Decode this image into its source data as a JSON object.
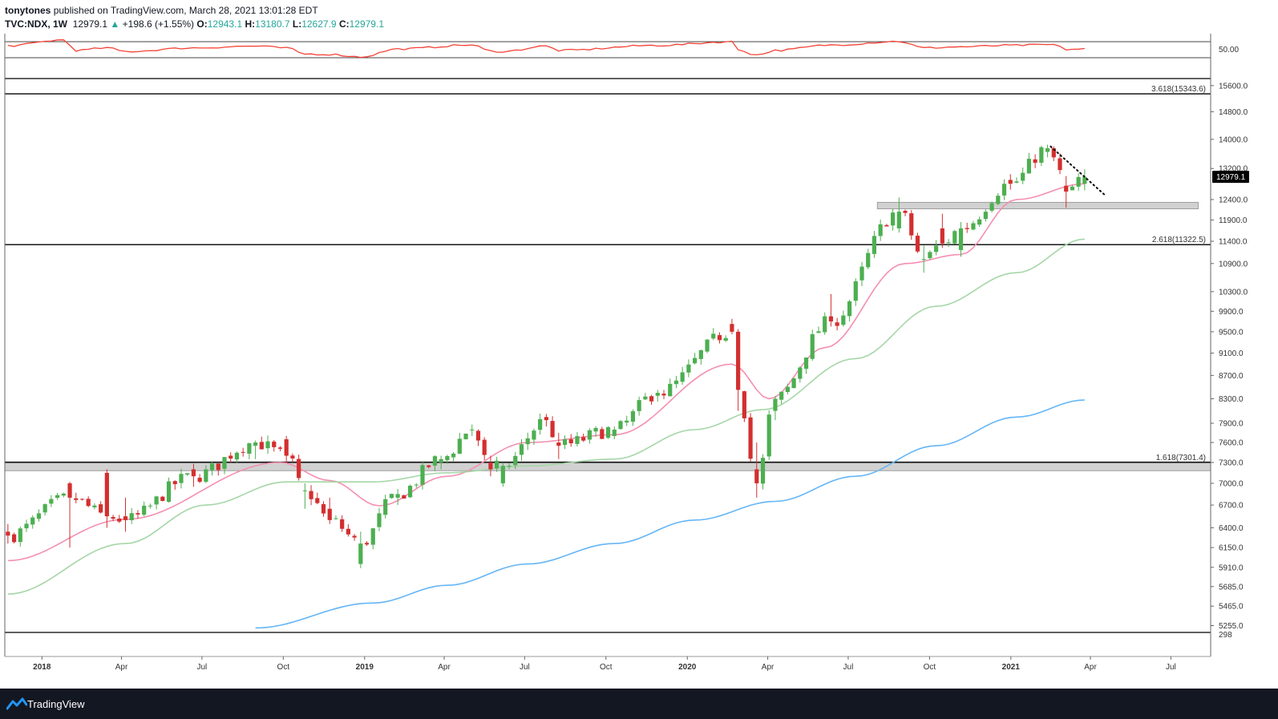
{
  "header": {
    "author": "tonytones",
    "publish_text": "published on TradingView.com, March 28, 2021 13:01:28 EDT",
    "symbol": "TVC:NDX, 1W",
    "last": "12979.1",
    "change_arrow": "▲",
    "change": "+198.6 (+1.55%)",
    "open_label": "O:",
    "open": "12943.1",
    "high_label": "H:",
    "high": "13180.7",
    "low_label": "L:",
    "low": "12627.9",
    "close_label": "C:",
    "close": "12979.1"
  },
  "footer": {
    "brand": "TradingView"
  },
  "colors": {
    "up": "#4caf50",
    "down": "#d32f2f",
    "ma_fast": "#f48fb1",
    "ma_mid": "#a5d6a7",
    "ma_slow": "#64b5f6",
    "rsi": "#f44336",
    "last_price_bg": "#000000"
  },
  "chart_data": {
    "type": "candlestick",
    "timeframe": "1W",
    "symbol": "TVC:NDX",
    "y_scale": "log",
    "ylim": [
      5200,
      15900
    ],
    "x_range": [
      "2017-11-20",
      "2021-08-15"
    ],
    "x_ticks": [
      {
        "date": "2018-01-01",
        "label": "2018",
        "bold": true
      },
      {
        "date": "2018-04-01",
        "label": "Apr"
      },
      {
        "date": "2018-07-01",
        "label": "Jul"
      },
      {
        "date": "2018-10-01",
        "label": "Oct"
      },
      {
        "date": "2019-01-01",
        "label": "2019",
        "bold": true
      },
      {
        "date": "2019-04-01",
        "label": "Apr"
      },
      {
        "date": "2019-07-01",
        "label": "Jul"
      },
      {
        "date": "2019-10-01",
        "label": "Oct"
      },
      {
        "date": "2020-01-01",
        "label": "2020",
        "bold": true
      },
      {
        "date": "2020-04-01",
        "label": "Apr"
      },
      {
        "date": "2020-07-01",
        "label": "Jul"
      },
      {
        "date": "2020-10-01",
        "label": "Oct"
      },
      {
        "date": "2021-01-01",
        "label": "2021",
        "bold": true
      },
      {
        "date": "2021-04-01",
        "label": "Apr"
      },
      {
        "date": "2021-07-01",
        "label": "Jul"
      }
    ],
    "price_ticks": [
      "15600.0",
      "14800.0",
      "14000.0",
      "13200.0",
      "12400.0",
      "11900.0",
      "11400.0",
      "10900.0",
      "10300.0",
      "9900.0",
      "9500.0",
      "9100.0",
      "8700.0",
      "8300.0",
      "7900.0",
      "7600.0",
      "7300.0",
      "7000.0",
      "6700.0",
      "6400.0",
      "6150.0",
      "5910.0",
      "5685.0",
      "5465.0",
      "5255.0"
    ],
    "rsi_tick": "50.00",
    "rsi_bottom_tick": "298",
    "last_price_label": "12979.1",
    "fib_levels": [
      {
        "label": "3.618(15343.6)",
        "value": 15343.6
      },
      {
        "label": "2.618(11322.5)",
        "value": 11322.5
      },
      {
        "label": "1.618(7301.4)",
        "value": 7301.4
      }
    ],
    "zones": [
      {
        "from": "2020-08-03",
        "to": "2021-08-01",
        "low": 12170,
        "high": 12330
      },
      {
        "from": "2017-11-20",
        "to": "2021-08-15",
        "low": 7180,
        "high": 7310
      }
    ],
    "trendline": [
      {
        "date": "2021-02-15",
        "value": 13800
      },
      {
        "date": "2021-04-19",
        "value": 12480
      }
    ],
    "ohlc_anchors": [
      [
        "2017-11-20",
        6350,
        6450,
        6200,
        6300
      ],
      [
        "2018-01-29",
        7000,
        7020,
        6150,
        6800
      ],
      [
        "2018-03-12",
        7150,
        7200,
        6400,
        6550
      ],
      [
        "2018-04-02",
        6550,
        6800,
        6350,
        6500
      ],
      [
        "2018-06-18",
        7200,
        7280,
        6950,
        7100
      ],
      [
        "2018-08-27",
        7550,
        7630,
        7350,
        7600
      ],
      [
        "2018-10-01",
        7650,
        7700,
        7300,
        7400
      ],
      [
        "2018-10-22",
        6900,
        7000,
        6650,
        6900
      ],
      [
        "2018-11-19",
        6650,
        6800,
        6450,
        6500
      ],
      [
        "2018-12-24",
        5950,
        6350,
        5900,
        6200
      ],
      [
        "2019-02-04",
        6800,
        6920,
        6700,
        6850
      ],
      [
        "2019-03-25",
        7300,
        7400,
        7200,
        7350
      ],
      [
        "2019-04-29",
        7800,
        7880,
        7700,
        7800
      ],
      [
        "2019-05-20",
        7300,
        7400,
        7100,
        7200
      ],
      [
        "2019-06-03",
        7000,
        7300,
        6950,
        7250
      ],
      [
        "2019-07-22",
        8000,
        8050,
        7850,
        7950
      ],
      [
        "2019-08-05",
        7600,
        7750,
        7350,
        7550
      ],
      [
        "2019-10-07",
        7700,
        7850,
        7650,
        7800
      ],
      [
        "2019-11-25",
        8350,
        8450,
        8250,
        8400
      ],
      [
        "2020-02-17",
        9650,
        9750,
        9450,
        9500
      ],
      [
        "2020-02-24",
        9500,
        9550,
        8100,
        8450
      ],
      [
        "2020-03-16",
        7200,
        7600,
        6800,
        7000
      ],
      [
        "2020-04-06",
        8100,
        8350,
        7950,
        8300
      ],
      [
        "2020-06-08",
        9800,
        10250,
        9600,
        9700
      ],
      [
        "2020-08-24",
        11700,
        12450,
        11600,
        12100
      ],
      [
        "2020-09-21",
        11000,
        11300,
        10700,
        11000
      ],
      [
        "2020-10-12",
        11700,
        12050,
        11250,
        11350
      ],
      [
        "2020-11-02",
        11200,
        11850,
        11050,
        11700
      ],
      [
        "2020-12-28",
        12900,
        13050,
        12650,
        12800
      ],
      [
        "2021-02-08",
        13650,
        13850,
        13500,
        13750
      ],
      [
        "2021-02-15",
        13750,
        13800,
        13400,
        13500
      ],
      [
        "2021-03-01",
        12750,
        13000,
        12200,
        12600
      ],
      [
        "2021-03-22",
        12800,
        13180,
        12630,
        12980
      ]
    ],
    "rsi_anchors": [
      [
        "2017-11-20",
        61
      ],
      [
        "2018-01-22",
        77
      ],
      [
        "2018-02-05",
        48
      ],
      [
        "2018-03-12",
        55
      ],
      [
        "2018-04-02",
        45
      ],
      [
        "2018-06-18",
        55
      ],
      [
        "2018-08-27",
        60
      ],
      [
        "2018-10-01",
        55
      ],
      [
        "2018-10-22",
        38
      ],
      [
        "2018-11-19",
        37
      ],
      [
        "2018-12-24",
        30
      ],
      [
        "2019-02-04",
        52
      ],
      [
        "2019-04-29",
        63
      ],
      [
        "2019-05-20",
        46
      ],
      [
        "2019-06-03",
        45
      ],
      [
        "2019-07-22",
        60
      ],
      [
        "2019-08-05",
        48
      ],
      [
        "2019-11-25",
        62
      ],
      [
        "2020-02-17",
        72
      ],
      [
        "2020-02-24",
        50
      ],
      [
        "2020-03-16",
        35
      ],
      [
        "2020-04-06",
        48
      ],
      [
        "2020-06-08",
        63
      ],
      [
        "2020-08-24",
        73
      ],
      [
        "2020-09-21",
        55
      ],
      [
        "2020-11-02",
        58
      ],
      [
        "2020-12-28",
        62
      ],
      [
        "2021-02-15",
        64
      ],
      [
        "2021-03-01",
        51
      ],
      [
        "2021-03-22",
        52
      ]
    ],
    "ma_fast_anchors": [
      [
        "2017-11-20",
        5990
      ],
      [
        "2018-04-02",
        6510
      ],
      [
        "2018-09-24",
        7300
      ],
      [
        "2018-11-19",
        7040
      ],
      [
        "2019-01-14",
        6690
      ],
      [
        "2019-04-01",
        7100
      ],
      [
        "2019-07-01",
        7600
      ],
      [
        "2019-10-07",
        7720
      ],
      [
        "2020-02-17",
        8900
      ],
      [
        "2020-03-30",
        8300
      ],
      [
        "2020-06-01",
        9200
      ],
      [
        "2020-08-31",
        10900
      ],
      [
        "2020-11-02",
        11100
      ],
      [
        "2021-01-04",
        12400
      ],
      [
        "2021-03-22",
        12800
      ]
    ],
    "ma_mid_anchors": [
      [
        "2017-11-20",
        5600
      ],
      [
        "2018-04-02",
        6200
      ],
      [
        "2018-07-02",
        6700
      ],
      [
        "2018-10-01",
        7020
      ],
      [
        "2019-01-07",
        7020
      ],
      [
        "2019-04-01",
        7150
      ],
      [
        "2019-07-01",
        7250
      ],
      [
        "2019-10-07",
        7350
      ],
      [
        "2020-01-06",
        7800
      ],
      [
        "2020-03-23",
        8120
      ],
      [
        "2020-07-06",
        9000
      ],
      [
        "2020-10-05",
        10000
      ],
      [
        "2021-01-04",
        10700
      ],
      [
        "2021-03-22",
        11450
      ]
    ],
    "ma_slow_anchors": [
      [
        "2018-08-27",
        5230
      ],
      [
        "2019-01-07",
        5500
      ],
      [
        "2019-04-01",
        5700
      ],
      [
        "2019-07-01",
        5950
      ],
      [
        "2019-10-07",
        6200
      ],
      [
        "2020-01-06",
        6500
      ],
      [
        "2020-04-06",
        6750
      ],
      [
        "2020-07-06",
        7100
      ],
      [
        "2020-10-05",
        7550
      ],
      [
        "2021-01-04",
        8000
      ],
      [
        "2021-03-22",
        8280
      ]
    ]
  }
}
